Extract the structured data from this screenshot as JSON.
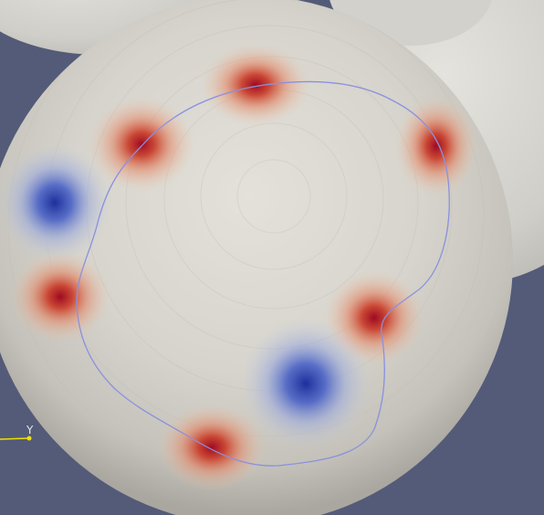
{
  "scene": {
    "background_color": "#545b78",
    "surface_color": "#d9d7cf",
    "hot_color": "#b40426",
    "cold_color": "#3b4cc0",
    "contour_color": "#8a90e0"
  },
  "axes_widget": {
    "label": "Y",
    "color": "#f0e000"
  }
}
